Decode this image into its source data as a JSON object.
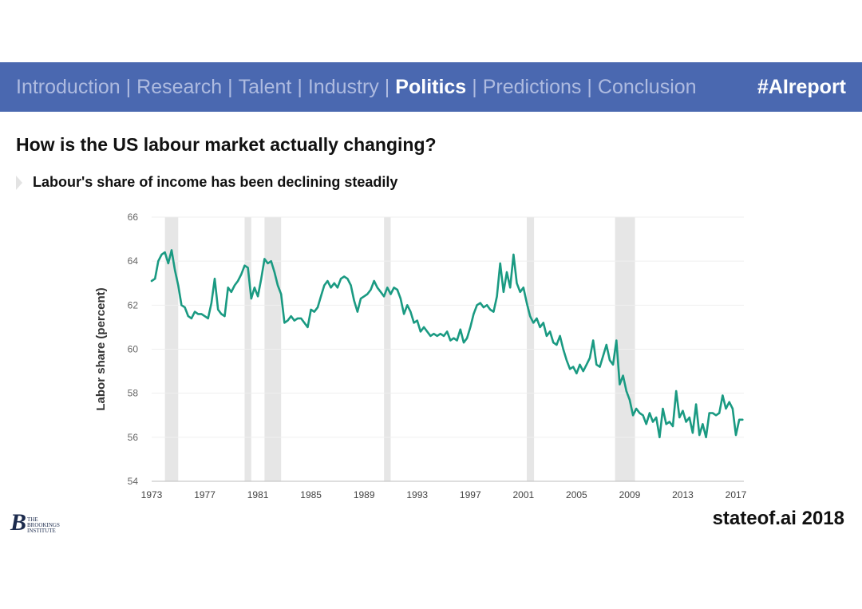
{
  "nav": {
    "items": [
      {
        "label": "Introduction",
        "active": false
      },
      {
        "label": "Research",
        "active": false
      },
      {
        "label": "Talent",
        "active": false
      },
      {
        "label": "Industry",
        "active": false
      },
      {
        "label": "Politics",
        "active": true
      },
      {
        "label": "Predictions",
        "active": false
      },
      {
        "label": "Conclusion",
        "active": false
      }
    ],
    "separator": "|",
    "hashtag": "#AIreport"
  },
  "slide": {
    "title": "How is the US labour market actually changing?",
    "subtitle": "Labour's share of income has been declining steadily"
  },
  "footer": {
    "brand": "stateof.ai 2018",
    "logo_mark": "B",
    "logo_lines": [
      "THE",
      "BROOKINGS",
      "INSTITUTE"
    ]
  },
  "colors": {
    "nav_bg": "#4a68b0",
    "line": "#1a9a82",
    "recession": "#e6e6e6",
    "grid": "#efefef"
  },
  "chart_data": {
    "type": "line",
    "title": "",
    "xlabel": "",
    "ylabel": "Labor share (percent)",
    "xlim": [
      1973,
      2017.6
    ],
    "ylim": [
      54,
      66
    ],
    "xticks": [
      1973,
      1977,
      1981,
      1985,
      1989,
      1993,
      1997,
      2001,
      2005,
      2009,
      2013,
      2017
    ],
    "yticks": [
      54,
      56,
      58,
      60,
      62,
      64,
      66
    ],
    "grid": true,
    "recessions": [
      [
        1974.0,
        1975.0
      ],
      [
        1980.0,
        1980.5
      ],
      [
        1981.5,
        1982.75
      ],
      [
        1990.5,
        1991.0
      ],
      [
        2001.25,
        2001.8
      ],
      [
        2007.9,
        2009.4
      ]
    ],
    "series": [
      {
        "name": "Labor share",
        "x": [
          1973.0,
          1973.25,
          1973.5,
          1973.75,
          1974.0,
          1974.25,
          1974.5,
          1974.75,
          1975.0,
          1975.25,
          1975.5,
          1975.75,
          1976.0,
          1976.25,
          1976.5,
          1976.75,
          1977.0,
          1977.25,
          1977.5,
          1977.75,
          1978.0,
          1978.25,
          1978.5,
          1978.75,
          1979.0,
          1979.25,
          1979.5,
          1979.75,
          1980.0,
          1980.25,
          1980.5,
          1980.75,
          1981.0,
          1981.25,
          1981.5,
          1981.75,
          1982.0,
          1982.25,
          1982.5,
          1982.75,
          1983.0,
          1983.25,
          1983.5,
          1983.75,
          1984.0,
          1984.25,
          1984.5,
          1984.75,
          1985.0,
          1985.25,
          1985.5,
          1985.75,
          1986.0,
          1986.25,
          1986.5,
          1986.75,
          1987.0,
          1987.25,
          1987.5,
          1987.75,
          1988.0,
          1988.25,
          1988.5,
          1988.75,
          1989.0,
          1989.25,
          1989.5,
          1989.75,
          1990.0,
          1990.25,
          1990.5,
          1990.75,
          1991.0,
          1991.25,
          1991.5,
          1991.75,
          1992.0,
          1992.25,
          1992.5,
          1992.75,
          1993.0,
          1993.25,
          1993.5,
          1993.75,
          1994.0,
          1994.25,
          1994.5,
          1994.75,
          1995.0,
          1995.25,
          1995.5,
          1995.75,
          1996.0,
          1996.25,
          1996.5,
          1996.75,
          1997.0,
          1997.25,
          1997.5,
          1997.75,
          1998.0,
          1998.25,
          1998.5,
          1998.75,
          1999.0,
          1999.25,
          1999.5,
          1999.75,
          2000.0,
          2000.25,
          2000.5,
          2000.75,
          2001.0,
          2001.25,
          2001.5,
          2001.75,
          2002.0,
          2002.25,
          2002.5,
          2002.75,
          2003.0,
          2003.25,
          2003.5,
          2003.75,
          2004.0,
          2004.25,
          2004.5,
          2004.75,
          2005.0,
          2005.25,
          2005.5,
          2005.75,
          2006.0,
          2006.25,
          2006.5,
          2006.75,
          2007.0,
          2007.25,
          2007.5,
          2007.75,
          2008.0,
          2008.25,
          2008.5,
          2008.75,
          2009.0,
          2009.25,
          2009.5,
          2009.75,
          2010.0,
          2010.25,
          2010.5,
          2010.75,
          2011.0,
          2011.25,
          2011.5,
          2011.75,
          2012.0,
          2012.25,
          2012.5,
          2012.75,
          2013.0,
          2013.25,
          2013.5,
          2013.75,
          2014.0,
          2014.25,
          2014.5,
          2014.75,
          2015.0,
          2015.25,
          2015.5,
          2015.75,
          2016.0,
          2016.25,
          2016.5,
          2016.75,
          2017.0,
          2017.25,
          2017.5
        ],
        "values": [
          63.1,
          63.2,
          64.0,
          64.3,
          64.4,
          63.9,
          64.5,
          63.6,
          62.9,
          62.0,
          61.9,
          61.5,
          61.4,
          61.7,
          61.6,
          61.6,
          61.5,
          61.4,
          62.1,
          63.2,
          61.8,
          61.6,
          61.5,
          62.8,
          62.6,
          62.9,
          63.1,
          63.4,
          63.8,
          63.7,
          62.3,
          62.8,
          62.4,
          63.2,
          64.1,
          63.9,
          64.0,
          63.5,
          62.9,
          62.5,
          61.2,
          61.3,
          61.5,
          61.3,
          61.4,
          61.4,
          61.2,
          61.0,
          61.8,
          61.7,
          61.9,
          62.4,
          62.9,
          63.1,
          62.8,
          63.0,
          62.8,
          63.2,
          63.3,
          63.2,
          62.9,
          62.2,
          61.7,
          62.3,
          62.4,
          62.5,
          62.7,
          63.1,
          62.8,
          62.6,
          62.4,
          62.8,
          62.5,
          62.8,
          62.7,
          62.3,
          61.6,
          62.0,
          61.7,
          61.2,
          61.3,
          60.8,
          61.0,
          60.8,
          60.6,
          60.7,
          60.6,
          60.7,
          60.6,
          60.8,
          60.4,
          60.5,
          60.4,
          60.9,
          60.3,
          60.5,
          61.0,
          61.6,
          62.0,
          62.1,
          61.9,
          62.0,
          61.8,
          61.7,
          62.4,
          63.9,
          62.6,
          63.5,
          62.8,
          64.3,
          63.0,
          62.6,
          62.8,
          62.1,
          61.5,
          61.2,
          61.4,
          61.0,
          61.2,
          60.6,
          60.8,
          60.3,
          60.2,
          60.6,
          60.0,
          59.5,
          59.1,
          59.2,
          58.9,
          59.3,
          59.0,
          59.3,
          59.6,
          60.4,
          59.3,
          59.2,
          59.7,
          60.2,
          59.5,
          59.3,
          60.4,
          58.4,
          58.8,
          58.1,
          57.7,
          57.0,
          57.3,
          57.1,
          57.0,
          56.6,
          57.1,
          56.7,
          56.9,
          56.0,
          57.3,
          56.6,
          56.7,
          56.5,
          58.1,
          56.9,
          57.2,
          56.7,
          56.9,
          56.2,
          57.5,
          56.1,
          56.6,
          56.0,
          57.1,
          57.1,
          57.0,
          57.1,
          57.9,
          57.3,
          57.6,
          57.3,
          56.1,
          56.8,
          56.8
        ]
      }
    ]
  }
}
